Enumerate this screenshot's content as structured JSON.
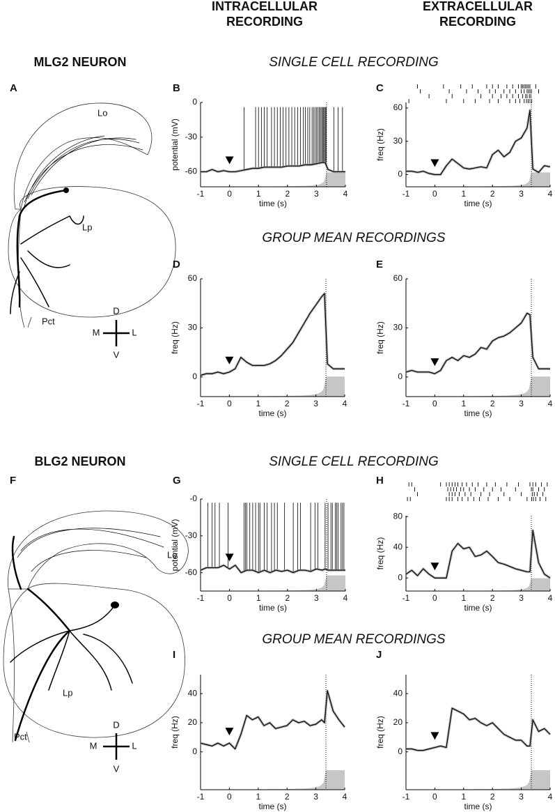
{
  "header": {
    "intracellular": [
      "INTRACELLULAR",
      "RECORDING"
    ],
    "extracellular": [
      "EXTRACELLULAR",
      "RECORDING"
    ]
  },
  "sections": [
    {
      "title": "MLG2 NEURON",
      "panel": "A",
      "lobula": "Lo",
      "lobula_plate": "Lp",
      "tract": "Pct",
      "compass": {
        "dorsal": "D",
        "ventral": "V",
        "medial": "M",
        "lateral": "L"
      },
      "single": "SINGLE CELL RECORDING",
      "group": "GROUP MEAN RECORDINGS"
    },
    {
      "title": "BLG2 NEURON",
      "panel": "F",
      "lobula": "Lo",
      "lobula_plate": "Lp",
      "tract": "Pct",
      "compass": {
        "dorsal": "D",
        "ventral": "V",
        "medial": "M",
        "lateral": "L"
      },
      "single": "SINGLE CELL RECORDING",
      "group": "GROUP MEAN RECORDINGS"
    }
  ],
  "chart_data": [
    {
      "type": "line",
      "panel": "B",
      "xlabel": "time (s)",
      "ylabel": "potential (mV)",
      "xlim": [
        -1,
        4
      ],
      "xticks": [
        -1,
        0,
        1,
        2,
        3,
        4
      ],
      "ylim": [
        -73,
        0
      ],
      "yticks": [
        0,
        -30,
        -60
      ],
      "onset": 0,
      "collision": 3.35,
      "color": "#000000",
      "x": [
        -1,
        -0.8,
        -0.6,
        -0.4,
        -0.2,
        0,
        0.2,
        0.4,
        0.6,
        0.8,
        1,
        1.2,
        1.4,
        1.6,
        1.8,
        2,
        2.2,
        2.4,
        2.6,
        2.8,
        3,
        3.2,
        3.3,
        3.4,
        3.6,
        3.8,
        4
      ],
      "values": [
        -60,
        -60,
        -58,
        -60,
        -59,
        -60,
        -60,
        -59,
        -58,
        -57,
        -57,
        -56,
        -56,
        -56,
        -56,
        -55,
        -55,
        -55,
        -54,
        -54,
        -53,
        -52,
        -52,
        -58,
        -60,
        -60,
        -60
      ],
      "spike_peak": -4,
      "spikes": [
        0.5,
        0.9,
        1.0,
        1.1,
        1.2,
        1.3,
        1.45,
        1.55,
        1.65,
        1.75,
        1.85,
        1.95,
        2.05,
        2.15,
        2.25,
        2.35,
        2.45,
        2.55,
        2.62,
        2.7,
        2.77,
        2.85,
        2.9,
        2.95,
        3.0,
        3.05,
        3.1,
        3.14,
        3.18,
        3.22,
        3.25,
        3.28,
        3.31,
        3.34,
        3.6,
        3.75,
        3.9
      ]
    },
    {
      "type": "line",
      "panel": "C",
      "xlabel": "time (s)",
      "ylabel": "freq (Hz)",
      "xlim": [
        -1,
        4
      ],
      "xticks": [
        -1,
        0,
        1,
        2,
        3,
        4
      ],
      "ylim": [
        -11,
        65
      ],
      "yticks": [
        0,
        30,
        60
      ],
      "onset": 0,
      "collision": 3.35,
      "color": "#000000",
      "x": [
        -1,
        -0.8,
        -0.6,
        -0.4,
        -0.2,
        0,
        0.2,
        0.4,
        0.6,
        0.8,
        1,
        1.2,
        1.4,
        1.6,
        1.8,
        2,
        2.2,
        2.4,
        2.6,
        2.8,
        3,
        3.2,
        3.3,
        3.4,
        3.6,
        3.8,
        4
      ],
      "values": [
        3,
        3,
        2,
        3,
        1,
        0,
        0,
        8,
        14,
        10,
        6,
        5,
        6,
        7,
        6,
        18,
        22,
        16,
        20,
        30,
        33,
        42,
        58,
        5,
        2,
        8,
        7
      ],
      "raster": [
        [
          -0.6,
          0.3,
          0.9,
          1.3,
          1.8,
          2.0,
          2.2,
          2.5,
          2.7,
          2.9,
          3.0,
          3.05,
          3.1,
          3.15,
          3.2,
          3.25,
          3.3,
          3.5
        ],
        [
          -0.5,
          0.5,
          1.1,
          1.5,
          1.9,
          2.1,
          2.4,
          2.6,
          2.8,
          3.0,
          3.1,
          3.2,
          3.25,
          3.3,
          3.35,
          3.6
        ],
        [
          -0.2,
          0.6,
          1.6,
          2.0,
          2.3,
          2.5,
          2.7,
          2.9,
          3.05,
          3.15,
          3.2,
          3.28,
          3.33
        ],
        [
          -0.9,
          0.4,
          1.0,
          1.4,
          1.9,
          2.2,
          2.6,
          2.8,
          2.95,
          3.1,
          3.18,
          3.24,
          3.3,
          3.36
        ]
      ]
    },
    {
      "type": "line",
      "panel": "D",
      "xlabel": "time (s)",
      "ylabel": "freq (Hz)",
      "xlim": [
        -1,
        4
      ],
      "xticks": [
        -1,
        0,
        1,
        2,
        3,
        4
      ],
      "ylim": [
        -12,
        60
      ],
      "yticks": [
        0,
        30,
        60
      ],
      "onset": 0,
      "collision": 3.35,
      "color": "#000000",
      "x": [
        -1,
        -0.8,
        -0.6,
        -0.4,
        -0.2,
        0,
        0.2,
        0.4,
        0.6,
        0.8,
        1,
        1.2,
        1.4,
        1.6,
        1.8,
        2,
        2.2,
        2.4,
        2.6,
        2.8,
        3,
        3.2,
        3.3,
        3.4,
        3.6,
        3.8,
        4
      ],
      "values": [
        1,
        2,
        2,
        3,
        2,
        3,
        5,
        12,
        9,
        7,
        7,
        7,
        8,
        10,
        13,
        17,
        21,
        27,
        33,
        39,
        44,
        49,
        51,
        8,
        5,
        5,
        5
      ]
    },
    {
      "type": "line",
      "panel": "E",
      "xlabel": "time (s)",
      "ylabel": "freq (Hz)",
      "xlim": [
        -1,
        4
      ],
      "xticks": [
        -1,
        0,
        1,
        2,
        3,
        4
      ],
      "ylim": [
        -12,
        60
      ],
      "yticks": [
        0,
        30,
        60
      ],
      "onset": 0,
      "collision": 3.35,
      "color": "#000000",
      "x": [
        -1,
        -0.8,
        -0.6,
        -0.4,
        -0.2,
        0,
        0.2,
        0.4,
        0.6,
        0.8,
        1,
        1.2,
        1.4,
        1.6,
        1.8,
        2,
        2.2,
        2.4,
        2.6,
        2.8,
        3,
        3.2,
        3.3,
        3.4,
        3.6,
        3.8,
        4
      ],
      "values": [
        3,
        4,
        3,
        3,
        3,
        2,
        4,
        10,
        12,
        10,
        13,
        12,
        14,
        18,
        17,
        22,
        24,
        25,
        27,
        30,
        33,
        39,
        38,
        12,
        5,
        5,
        5
      ]
    },
    {
      "type": "line",
      "panel": "G",
      "xlabel": "time (s)",
      "ylabel": "potential (mV)",
      "xlim": [
        -1,
        4
      ],
      "xticks": [
        -1,
        0,
        1,
        2,
        3,
        4
      ],
      "ylim": [
        -75,
        0
      ],
      "yticks": [
        {
          "value": 0,
          "label": "-0"
        },
        -30,
        -60
      ],
      "onset": 0,
      "collision": 3.35,
      "color": "#000000",
      "x": [
        -1,
        -0.8,
        -0.6,
        -0.4,
        -0.2,
        0,
        0.2,
        0.4,
        0.6,
        0.8,
        1,
        1.2,
        1.4,
        1.6,
        1.8,
        2,
        2.2,
        2.4,
        2.6,
        2.8,
        3,
        3.2,
        3.3,
        3.4,
        3.6,
        3.8,
        4
      ],
      "values": [
        -58,
        -56,
        -56,
        -56,
        -54,
        -57,
        -54,
        -60,
        -58,
        -58,
        -60,
        -58,
        -60,
        -58,
        -59,
        -58,
        -60,
        -58,
        -58,
        -59,
        -57,
        -58,
        -57,
        -58,
        -58,
        -58,
        -58
      ],
      "spike_peak": -3,
      "spikes": [
        -0.75,
        -0.6,
        -0.5,
        -0.35,
        -0.05,
        0.5,
        0.55,
        0.6,
        0.7,
        0.8,
        0.9,
        1.0,
        1.05,
        1.2,
        1.3,
        1.45,
        1.55,
        1.65,
        1.9,
        2.2,
        2.35,
        2.45,
        2.8,
        2.95,
        3.05,
        3.3,
        3.4,
        3.5,
        3.55,
        3.65,
        3.7,
        3.75,
        3.85,
        3.9,
        3.95
      ]
    },
    {
      "type": "line",
      "panel": "H",
      "xlabel": "time (s)",
      "ylabel": "freq (Hz)",
      "xlim": [
        -1,
        4
      ],
      "xticks": [
        -1,
        0,
        1,
        2,
        3,
        4
      ],
      "ylim": [
        -17,
        81
      ],
      "yticks": [
        0,
        40,
        80
      ],
      "onset": 0,
      "collision": 3.35,
      "color": "#000000",
      "x": [
        -1,
        -0.8,
        -0.6,
        -0.4,
        -0.2,
        0,
        0.2,
        0.4,
        0.6,
        0.8,
        1,
        1.2,
        1.4,
        1.6,
        1.8,
        2,
        2.2,
        2.4,
        2.6,
        2.8,
        3,
        3.2,
        3.3,
        3.4,
        3.6,
        3.8,
        4
      ],
      "values": [
        5,
        10,
        3,
        12,
        5,
        0,
        0,
        0,
        35,
        45,
        38,
        40,
        28,
        30,
        35,
        28,
        20,
        18,
        15,
        12,
        10,
        8,
        8,
        62,
        20,
        5,
        0
      ],
      "raster": [
        [
          -0.9,
          -0.8,
          0.2,
          0.4,
          0.5,
          0.6,
          0.7,
          0.8,
          0.95,
          1.1,
          1.3,
          1.5,
          1.8,
          2.1,
          2.5,
          2.9,
          3.3,
          3.4,
          3.5,
          3.7,
          3.9
        ],
        [
          -0.7,
          0.45,
          0.55,
          0.65,
          0.75,
          0.9,
          1.0,
          1.2,
          1.4,
          1.7,
          2.0,
          2.3,
          2.8,
          3.35,
          3.4,
          3.6,
          3.8
        ],
        [
          -0.6,
          0.5,
          0.6,
          0.7,
          0.85,
          1.05,
          1.25,
          1.6,
          1.9,
          2.4,
          3.0,
          3.38,
          3.45,
          3.55,
          3.75
        ],
        [
          -0.95,
          -0.85,
          0.4,
          0.5,
          0.6,
          0.8,
          0.95,
          1.15,
          1.35,
          1.55,
          1.85,
          2.2,
          2.6,
          3.2,
          3.36,
          3.42,
          3.5,
          3.65,
          3.85
        ]
      ]
    },
    {
      "type": "line",
      "panel": "I",
      "xlabel": "time (s)",
      "ylabel": "freq (Hz)",
      "xlim": [
        -1,
        4
      ],
      "xticks": [
        -1,
        0,
        1,
        2,
        3,
        4
      ],
      "ylim": [
        -26,
        53
      ],
      "yticks": [
        0,
        20,
        40
      ],
      "onset": 0,
      "collision": 3.35,
      "color": "#000000",
      "x": [
        -1,
        -0.8,
        -0.6,
        -0.4,
        -0.2,
        0,
        0.2,
        0.4,
        0.6,
        0.8,
        1,
        1.2,
        1.4,
        1.6,
        1.8,
        2,
        2.2,
        2.4,
        2.6,
        2.8,
        3,
        3.2,
        3.3,
        3.4,
        3.6,
        3.8,
        4
      ],
      "values": [
        6,
        5,
        4,
        6,
        4,
        6,
        2,
        12,
        25,
        22,
        24,
        18,
        20,
        16,
        17,
        18,
        22,
        20,
        21,
        18,
        19,
        22,
        20,
        42,
        28,
        22,
        17
      ]
    },
    {
      "type": "line",
      "panel": "J",
      "xlabel": "time (s)",
      "ylabel": "freq (Hz)",
      "xlim": [
        -1,
        4
      ],
      "xticks": [
        -1,
        0,
        1,
        2,
        3,
        4
      ],
      "ylim": [
        -26,
        53
      ],
      "yticks": [
        0,
        20,
        40
      ],
      "onset": 0,
      "collision": 3.35,
      "color": "#000000",
      "x": [
        -1,
        -0.8,
        -0.6,
        -0.4,
        -0.2,
        0,
        0.2,
        0.4,
        0.6,
        0.8,
        1,
        1.2,
        1.4,
        1.6,
        1.8,
        2,
        2.2,
        2.4,
        2.6,
        2.8,
        3,
        3.2,
        3.3,
        3.4,
        3.6,
        3.8,
        4
      ],
      "values": [
        2,
        2,
        1,
        1,
        2,
        3,
        4,
        3,
        30,
        28,
        26,
        22,
        23,
        20,
        18,
        20,
        16,
        12,
        10,
        8,
        8,
        4,
        4,
        22,
        14,
        16,
        12
      ]
    }
  ]
}
